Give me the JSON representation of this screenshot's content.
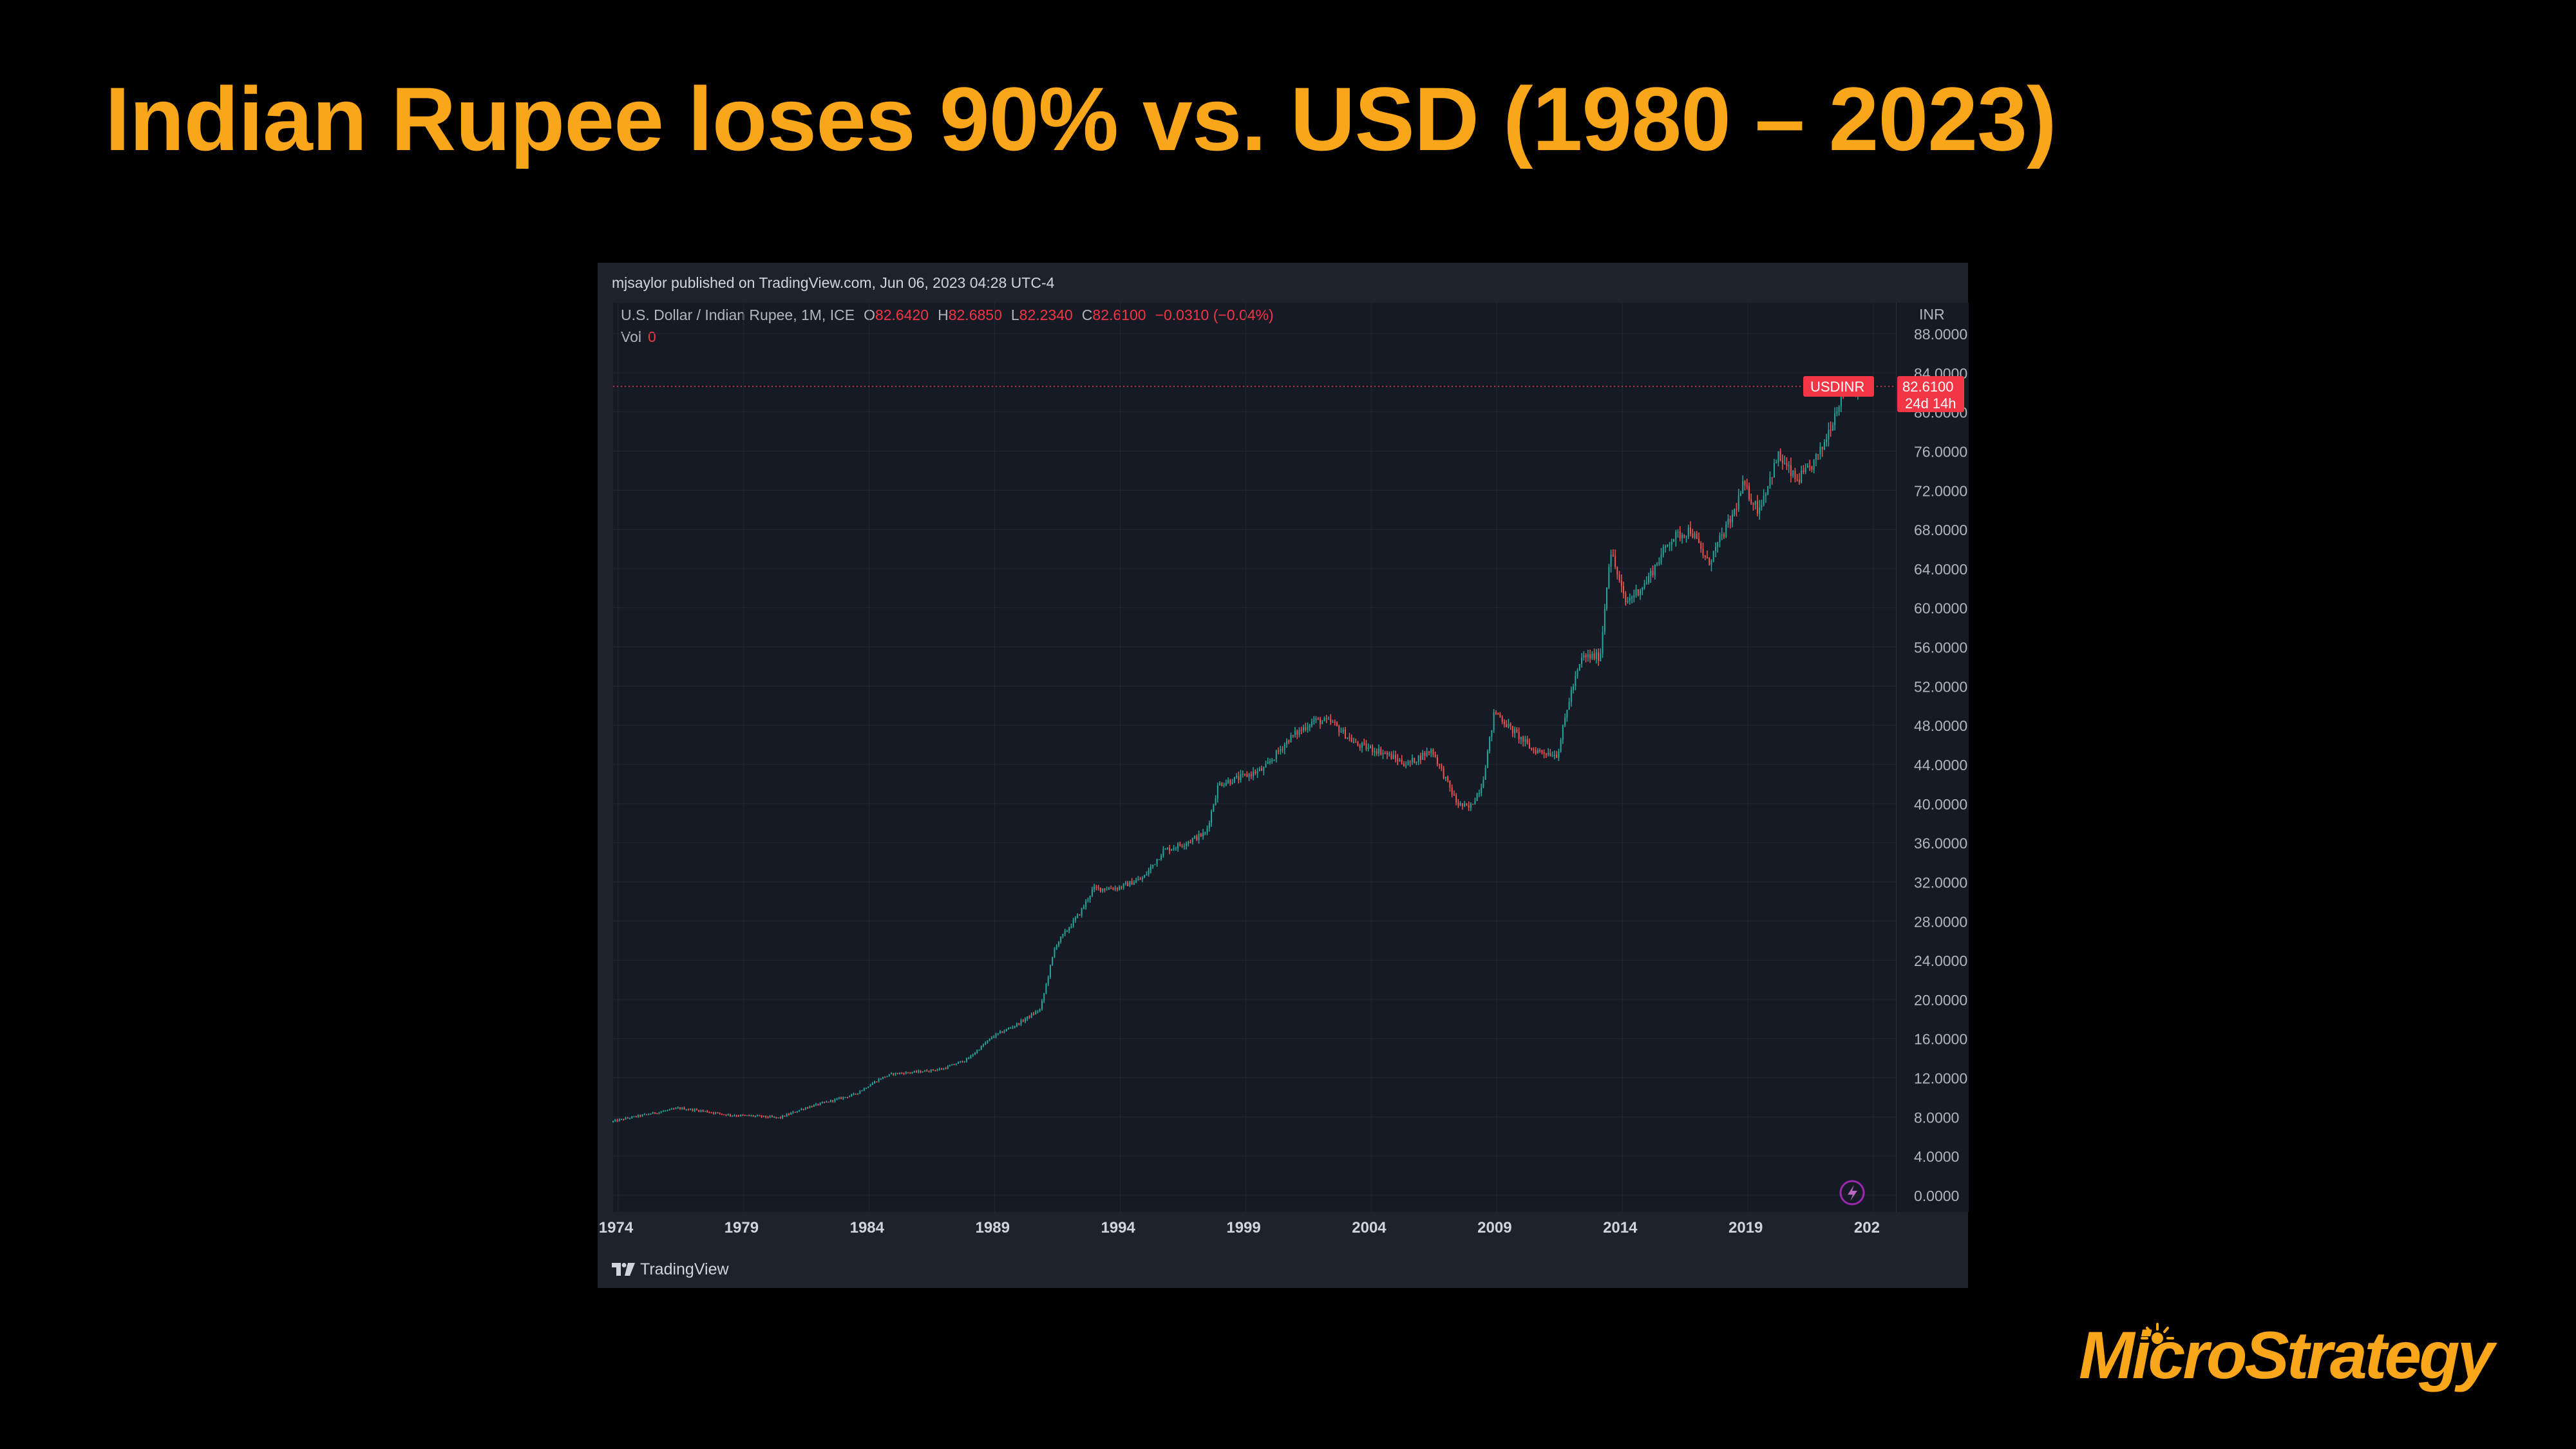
{
  "slide": {
    "title": "Indian Rupee loses 90% vs. USD (1980 – 2023)",
    "brand": "MicroStrategy",
    "title_color": "#F9A61A"
  },
  "panel": {
    "published": "mjsaylor published on TradingView.com, Jun 06, 2023 04:28 UTC-4",
    "symbol_desc": "U.S. Dollar / Indian Rupee, 1M, ICE",
    "ohlc": {
      "o_label": "O",
      "o_value": "82.6420",
      "h_label": "H",
      "h_value": "82.6850",
      "l_label": "L",
      "l_value": "82.2340",
      "c_label": "C",
      "c_value": "82.6100",
      "change": "−0.0310 (−0.04%)"
    },
    "vol_label": "Vol",
    "vol_value": "0",
    "footer_logo_text": "TradingView",
    "price_tag": {
      "symbol": "USDINR",
      "price": "82.6100",
      "countdown": "24d 14h",
      "color": "#F23645"
    }
  },
  "chart_data": {
    "type": "candlestick",
    "series_name": "USDINR",
    "up_color": "#26A69A",
    "down_color": "#EF5350",
    "y_axis_label": "INR",
    "y_ticks": [
      "0.0000",
      "4.0000",
      "8.0000",
      "12.0000",
      "16.0000",
      "20.0000",
      "24.0000",
      "28.0000",
      "32.0000",
      "36.0000",
      "40.0000",
      "44.0000",
      "48.0000",
      "52.0000",
      "56.0000",
      "60.0000",
      "64.0000",
      "68.0000",
      "72.0000",
      "76.0000",
      "80.0000",
      "84.0000",
      "88.0000"
    ],
    "ylim": [
      0,
      90.2
    ],
    "x_ticks": [
      "1974",
      "1979",
      "1984",
      "1989",
      "1994",
      "1999",
      "2004",
      "2009",
      "2014",
      "2019",
      "202"
    ],
    "xlim": [
      1973.8,
      2024.9
    ],
    "last_price": 82.61,
    "points": [
      [
        1973.8,
        7.5
      ],
      [
        1974.5,
        7.9
      ],
      [
        1975.5,
        8.4
      ],
      [
        1976.5,
        8.9
      ],
      [
        1977.5,
        8.6
      ],
      [
        1978.5,
        8.2
      ],
      [
        1979.5,
        8.1
      ],
      [
        1980.5,
        7.9
      ],
      [
        1981.5,
        8.9
      ],
      [
        1982.5,
        9.6
      ],
      [
        1983.5,
        10.3
      ],
      [
        1984.5,
        11.9
      ],
      [
        1985.0,
        12.4
      ],
      [
        1986.0,
        12.6
      ],
      [
        1987.0,
        12.9
      ],
      [
        1988.0,
        13.9
      ],
      [
        1989.0,
        16.2
      ],
      [
        1990.0,
        17.5
      ],
      [
        1990.9,
        19.0
      ],
      [
        1991.5,
        25.5
      ],
      [
        1992.5,
        28.9
      ],
      [
        1993.0,
        31.3
      ],
      [
        1994.0,
        31.4
      ],
      [
        1995.0,
        32.4
      ],
      [
        1995.8,
        35.2
      ],
      [
        1996.5,
        35.8
      ],
      [
        1997.5,
        37.0
      ],
      [
        1998.0,
        42.0
      ],
      [
        1998.8,
        42.6
      ],
      [
        1999.8,
        43.5
      ],
      [
        2000.8,
        46.6
      ],
      [
        2001.8,
        48.5
      ],
      [
        2002.5,
        48.3
      ],
      [
        2003.5,
        46.0
      ],
      [
        2004.5,
        45.3
      ],
      [
        2005.5,
        44.0
      ],
      [
        2006.5,
        45.5
      ],
      [
        2007.5,
        40.0
      ],
      [
        2008.0,
        39.5
      ],
      [
        2008.5,
        42.0
      ],
      [
        2009.0,
        49.5
      ],
      [
        2009.5,
        48.0
      ],
      [
        2010.5,
        45.5
      ],
      [
        2011.5,
        45.0
      ],
      [
        2012.0,
        51.0
      ],
      [
        2012.5,
        55.0
      ],
      [
        2013.2,
        55.0
      ],
      [
        2013.6,
        66.0
      ],
      [
        2014.2,
        60.5
      ],
      [
        2015.0,
        62.5
      ],
      [
        2016.0,
        67.0
      ],
      [
        2016.8,
        68.0
      ],
      [
        2017.5,
        64.5
      ],
      [
        2018.5,
        69.5
      ],
      [
        2018.9,
        72.5
      ],
      [
        2019.5,
        70.0
      ],
      [
        2020.3,
        75.5
      ],
      [
        2021.0,
        73.0
      ],
      [
        2021.5,
        74.0
      ],
      [
        2022.0,
        76.0
      ],
      [
        2022.5,
        79.5
      ],
      [
        2022.9,
        82.5
      ],
      [
        2023.4,
        82.61
      ]
    ]
  }
}
